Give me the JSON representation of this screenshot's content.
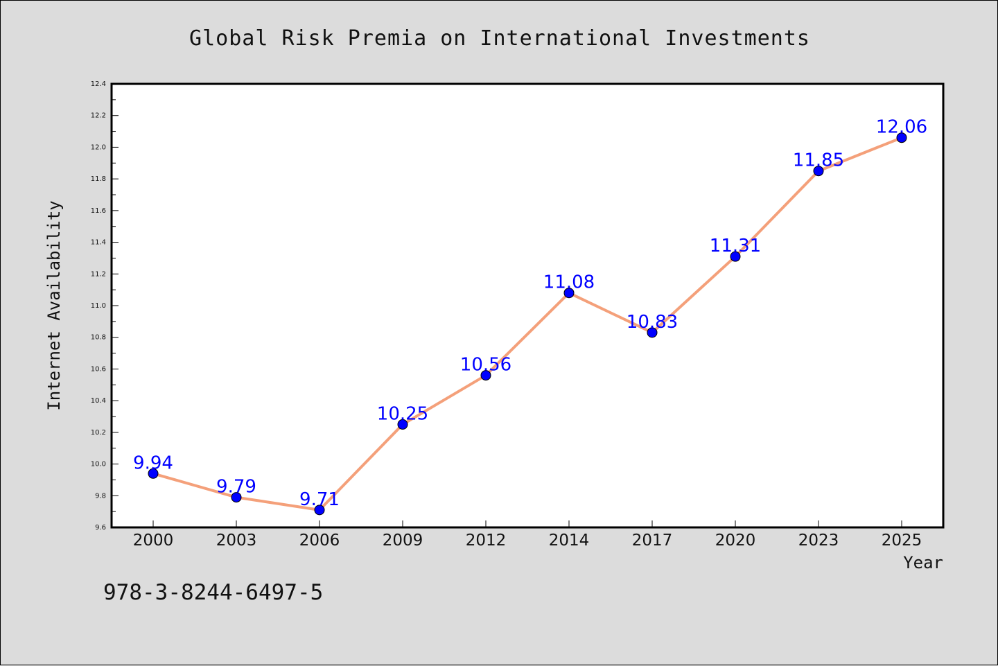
{
  "chart_data": {
    "type": "line",
    "title": "Global Risk Premia on International Investments",
    "xlabel": "Year",
    "ylabel": "Internet Availability",
    "categories": [
      "2000",
      "2003",
      "2006",
      "2009",
      "2012",
      "2014",
      "2017",
      "2020",
      "2023",
      "2025"
    ],
    "series": [
      {
        "values": [
          9.94,
          9.79,
          9.71,
          10.25,
          10.56,
          11.08,
          10.83,
          11.31,
          11.85,
          12.06
        ],
        "data_labels": [
          "9.94",
          "9.79",
          "9.71",
          "10.25",
          "10.56",
          "11.08",
          "10.83",
          "11.31",
          "11.85",
          "12.06"
        ],
        "line_color": "#f4a07a",
        "marker_color": "#0000ff"
      }
    ],
    "ylim": [
      9.6,
      12.4
    ],
    "yticks": [
      "9.6",
      "9.8",
      "10.0",
      "10.2",
      "10.4",
      "10.6",
      "10.8",
      "11.0",
      "11.2",
      "11.4",
      "11.6",
      "11.8",
      "12.0",
      "12.2",
      "12.4"
    ],
    "grid": false,
    "legend": "none"
  },
  "footnote": "978-3-8244-6497-5",
  "colors": {
    "background": "#dcdcdc",
    "plot_background": "#ffffff",
    "line": "#f4a07a",
    "marker": "#0000ff",
    "data_label": "#0000ff"
  }
}
